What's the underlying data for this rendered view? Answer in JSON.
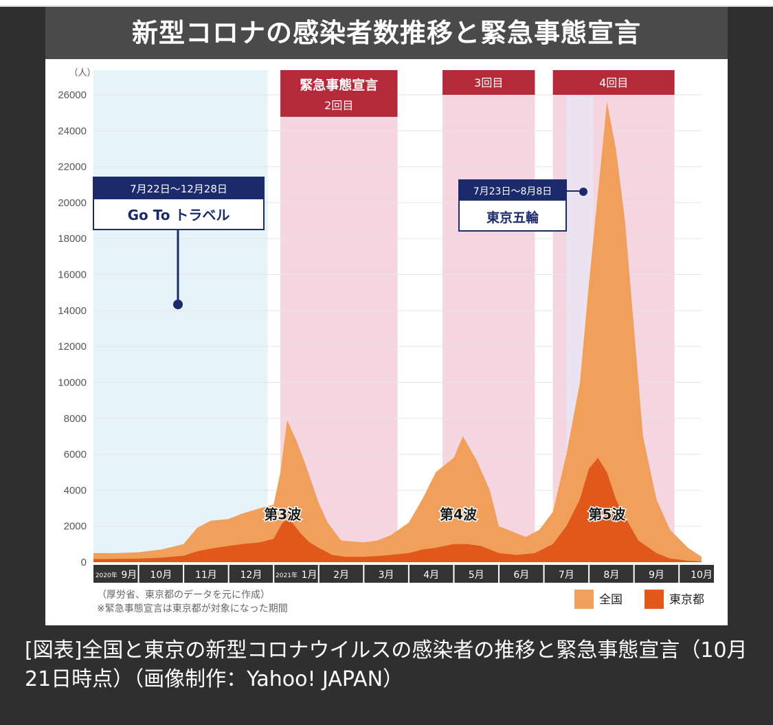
{
  "title": "新型コロナの感染者数推移と緊急事態宣言",
  "caption": "[図表]全国と東京の新型コロナウイルスの感染者の推移と緊急事態宣言（10月21日時点）（画像制作：Yahoo! JAPAN）",
  "colors": {
    "national": "#f0a05a",
    "tokyo": "#e0581a",
    "emergency": "#f5d5df",
    "goto_band": "#e6f3fb",
    "banner": "#b52a3a",
    "callout_border": "#1b2a6b",
    "callout_header": "#1b2a6b"
  },
  "chart_data": {
    "type": "area",
    "ylabel": "（人）",
    "ylim": [
      0,
      26000
    ],
    "y_ticks": [
      0,
      2000,
      4000,
      6000,
      8000,
      10000,
      12000,
      14000,
      16000,
      18000,
      20000,
      22000,
      24000,
      26000
    ],
    "months": [
      {
        "label": "9月",
        "prefix": "2020年"
      },
      {
        "label": "10月"
      },
      {
        "label": "11月"
      },
      {
        "label": "12月"
      },
      {
        "label": "1月",
        "prefix": "2021年"
      },
      {
        "label": "2月"
      },
      {
        "label": "3月"
      },
      {
        "label": "4月"
      },
      {
        "label": "5月"
      },
      {
        "label": "6月"
      },
      {
        "label": "7月"
      },
      {
        "label": "8月"
      },
      {
        "label": "9月"
      },
      {
        "label": "10月"
      }
    ],
    "legend": [
      "全国",
      "東京都"
    ],
    "series": [
      {
        "name": "全国",
        "points": [
          [
            0.0,
            500
          ],
          [
            0.5,
            500
          ],
          [
            1.0,
            550
          ],
          [
            1.5,
            700
          ],
          [
            2.0,
            1000
          ],
          [
            2.3,
            1900
          ],
          [
            2.6,
            2300
          ],
          [
            3.0,
            2400
          ],
          [
            3.3,
            2700
          ],
          [
            3.7,
            3000
          ],
          [
            4.0,
            3200
          ],
          [
            4.15,
            5000
          ],
          [
            4.3,
            7900
          ],
          [
            4.5,
            6800
          ],
          [
            4.7,
            5500
          ],
          [
            5.0,
            3300
          ],
          [
            5.2,
            2200
          ],
          [
            5.5,
            1200
          ],
          [
            6.0,
            1100
          ],
          [
            6.3,
            1200
          ],
          [
            6.6,
            1500
          ],
          [
            7.0,
            2200
          ],
          [
            7.3,
            3500
          ],
          [
            7.6,
            5000
          ],
          [
            8.0,
            5800
          ],
          [
            8.2,
            7000
          ],
          [
            8.5,
            5700
          ],
          [
            8.8,
            4000
          ],
          [
            9.0,
            2000
          ],
          [
            9.3,
            1700
          ],
          [
            9.6,
            1400
          ],
          [
            9.9,
            1800
          ],
          [
            10.2,
            2800
          ],
          [
            10.5,
            6000
          ],
          [
            10.8,
            10000
          ],
          [
            11.0,
            15500
          ],
          [
            11.2,
            20500
          ],
          [
            11.4,
            25600
          ],
          [
            11.6,
            23000
          ],
          [
            11.8,
            19000
          ],
          [
            12.0,
            13000
          ],
          [
            12.2,
            7000
          ],
          [
            12.5,
            3500
          ],
          [
            12.8,
            1800
          ],
          [
            13.2,
            800
          ],
          [
            13.5,
            300
          ]
        ]
      },
      {
        "name": "東京都",
        "points": [
          [
            0.0,
            170
          ],
          [
            0.5,
            180
          ],
          [
            1.0,
            190
          ],
          [
            1.5,
            250
          ],
          [
            2.0,
            350
          ],
          [
            2.3,
            600
          ],
          [
            2.6,
            750
          ],
          [
            3.0,
            900
          ],
          [
            3.3,
            1000
          ],
          [
            3.7,
            1100
          ],
          [
            4.0,
            1300
          ],
          [
            4.2,
            2200
          ],
          [
            4.35,
            2400
          ],
          [
            4.6,
            1600
          ],
          [
            4.8,
            1100
          ],
          [
            5.0,
            800
          ],
          [
            5.3,
            400
          ],
          [
            5.6,
            300
          ],
          [
            6.0,
            300
          ],
          [
            6.4,
            350
          ],
          [
            7.0,
            500
          ],
          [
            7.3,
            700
          ],
          [
            7.6,
            800
          ],
          [
            8.0,
            1000
          ],
          [
            8.3,
            1000
          ],
          [
            8.6,
            900
          ],
          [
            9.0,
            500
          ],
          [
            9.4,
            400
          ],
          [
            9.8,
            500
          ],
          [
            10.2,
            1000
          ],
          [
            10.5,
            2000
          ],
          [
            10.8,
            3500
          ],
          [
            11.0,
            5200
          ],
          [
            11.2,
            5800
          ],
          [
            11.4,
            5000
          ],
          [
            11.6,
            3500
          ],
          [
            11.8,
            2500
          ],
          [
            12.1,
            1200
          ],
          [
            12.5,
            500
          ],
          [
            12.8,
            200
          ],
          [
            13.2,
            80
          ],
          [
            13.5,
            40
          ]
        ]
      }
    ],
    "periods": [
      {
        "name": "Go To トラベル",
        "dates": "7月22日〜12月28日",
        "start": -0.5,
        "end": 3.87,
        "kind": "goto"
      },
      {
        "name": "緊急事態宣言",
        "sub": "2回目",
        "start": 4.15,
        "end": 6.75,
        "kind": "emergency"
      },
      {
        "name": "3回目",
        "start": 7.75,
        "end": 9.8,
        "kind": "emergency"
      },
      {
        "name": "4回目",
        "start": 10.2,
        "end": 12.9,
        "kind": "emergency"
      },
      {
        "name": "東京五輪",
        "dates": "7月23日〜8月8日",
        "start": 10.5,
        "end": 11.1,
        "kind": "olympics"
      }
    ],
    "annotations": [
      {
        "text": "第3波",
        "x": 4.2,
        "y": 2700
      },
      {
        "text": "第4波",
        "x": 8.1,
        "y": 2700
      },
      {
        "text": "第5波",
        "x": 11.4,
        "y": 2700
      }
    ],
    "goto_label": "Go To トラベル",
    "goto_dates": "7月22日〜12月28日",
    "olympics_label": "東京五輪",
    "olympics_dates": "7月23日〜8月8日",
    "emergency2_label": "緊急事態宣言",
    "emergency2_sub": "2回目",
    "emergency3_label": "3回目",
    "emergency4_label": "4回目",
    "notes": [
      "（厚労省、東京都のデータを元に作成）",
      "※緊急事態宣言は東京都が対象になった期間"
    ]
  }
}
